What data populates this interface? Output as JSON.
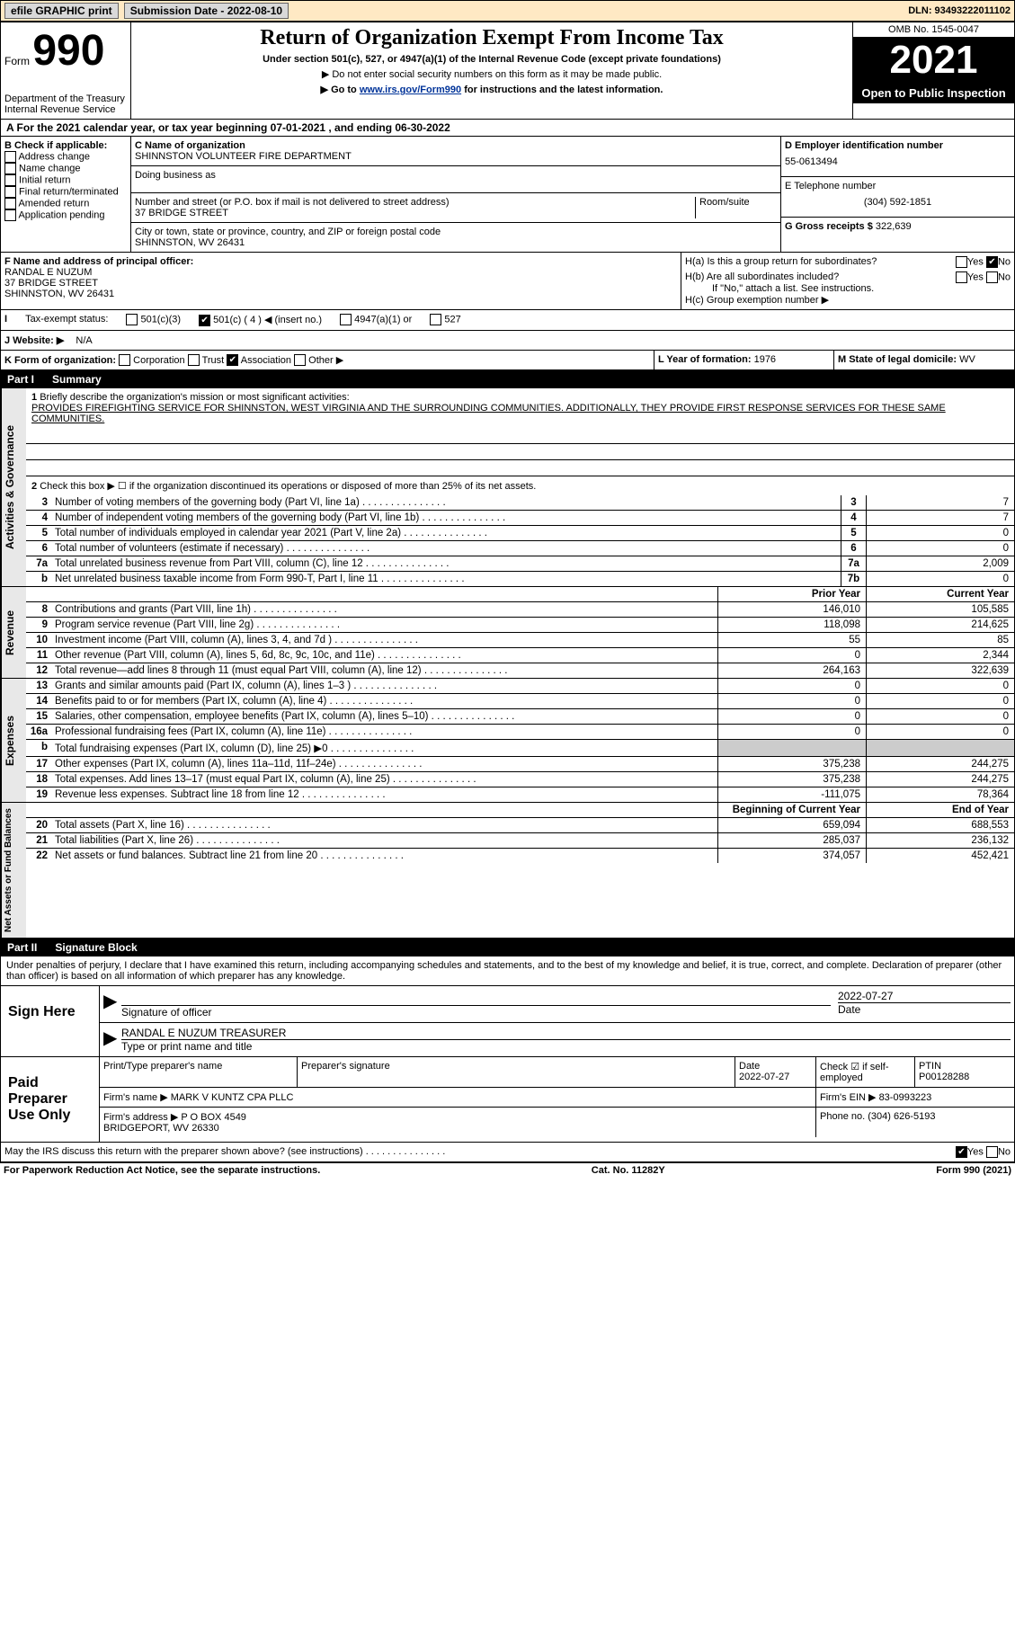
{
  "topbar": {
    "efile": "efile GRAPHIC print",
    "submission_label": "Submission Date - 2022-08-10",
    "dln_label": "DLN: 93493222011102"
  },
  "header": {
    "form_word": "Form",
    "form_num": "990",
    "dept": "Department of the Treasury Internal Revenue Service",
    "title": "Return of Organization Exempt From Income Tax",
    "sub1": "Under section 501(c), 527, or 4947(a)(1) of the Internal Revenue Code (except private foundations)",
    "sub2": "▶ Do not enter social security numbers on this form as it may be made public.",
    "sub3_pre": "▶ Go to ",
    "sub3_link": "www.irs.gov/Form990",
    "sub3_post": " for instructions and the latest information.",
    "omb": "OMB No. 1545-0047",
    "year": "2021",
    "open": "Open to Public Inspection"
  },
  "rowA": "A For the 2021 calendar year, or tax year beginning 07-01-2021    , and ending 06-30-2022",
  "B": {
    "hdr": "B Check if applicable:",
    "opts": [
      "Address change",
      "Name change",
      "Initial return",
      "Final return/terminated",
      "Amended return",
      "Application pending"
    ]
  },
  "C": {
    "name_lbl": "C Name of organization",
    "name": "SHINNSTON VOLUNTEER FIRE DEPARTMENT",
    "dba_lbl": "Doing business as",
    "addr_lbl": "Number and street (or P.O. box if mail is not delivered to street address)",
    "room_lbl": "Room/suite",
    "addr": "37 BRIDGE STREET",
    "city_lbl": "City or town, state or province, country, and ZIP or foreign postal code",
    "city": "SHINNSTON, WV  26431"
  },
  "D": {
    "ein_lbl": "D Employer identification number",
    "ein": "55-0613494",
    "tel_lbl": "E Telephone number",
    "tel": "(304) 592-1851",
    "gross_lbl": "G Gross receipts $",
    "gross": "322,639"
  },
  "F": {
    "lbl": "F Name and address of principal officer:",
    "name": "RANDAL E NUZUM",
    "addr1": "37 BRIDGE STREET",
    "addr2": "SHINNSTON, WV  26431"
  },
  "H": {
    "a": "H(a)  Is this a group return for subordinates?",
    "b": "H(b)  Are all subordinates included?",
    "b_note": "If \"No,\" attach a list. See instructions.",
    "c": "H(c)  Group exemption number ▶"
  },
  "I": {
    "lbl": "Tax-exempt status:",
    "opts": [
      "501(c)(3)",
      "501(c) ( 4 ) ◀ (insert no.)",
      "4947(a)(1) or",
      "527"
    ]
  },
  "J": {
    "lbl": "J  Website: ▶",
    "val": "N/A"
  },
  "K": {
    "lbl": "K Form of organization:",
    "opts": [
      "Corporation",
      "Trust",
      "Association",
      "Other ▶"
    ]
  },
  "L": {
    "lbl": "L Year of formation:",
    "val": "1976"
  },
  "M": {
    "lbl": "M State of legal domicile:",
    "val": "WV"
  },
  "part1": {
    "name": "Part I",
    "title": "Summary"
  },
  "p1": {
    "l1_lbl": "Briefly describe the organization's mission or most significant activities:",
    "l1_val": "PROVIDES FIREFIGHTING SERVICE FOR SHINNSTON, WEST VIRGINIA AND THE SURROUNDING COMMUNITIES. ADDITIONALLY, THEY PROVIDE FIRST RESPONSE SERVICES FOR THESE SAME COMMUNITIES.",
    "l2": "Check this box ▶ ☐ if the organization discontinued its operations or disposed of more than 25% of its net assets.",
    "rows_ag": [
      {
        "n": "3",
        "t": "Number of voting members of the governing body (Part VI, line 1a)",
        "b": "3",
        "v": "7"
      },
      {
        "n": "4",
        "t": "Number of independent voting members of the governing body (Part VI, line 1b)",
        "b": "4",
        "v": "7"
      },
      {
        "n": "5",
        "t": "Total number of individuals employed in calendar year 2021 (Part V, line 2a)",
        "b": "5",
        "v": "0"
      },
      {
        "n": "6",
        "t": "Total number of volunteers (estimate if necessary)",
        "b": "6",
        "v": "0"
      },
      {
        "n": "7a",
        "t": "Total unrelated business revenue from Part VIII, column (C), line 12",
        "b": "7a",
        "v": "2,009"
      },
      {
        "n": "b",
        "t": "Net unrelated business taxable income from Form 990-T, Part I, line 11",
        "b": "7b",
        "v": "0"
      }
    ],
    "col_prior": "Prior Year",
    "col_curr": "Current Year",
    "revenue": [
      {
        "n": "8",
        "t": "Contributions and grants (Part VIII, line 1h)",
        "p": "146,010",
        "c": "105,585"
      },
      {
        "n": "9",
        "t": "Program service revenue (Part VIII, line 2g)",
        "p": "118,098",
        "c": "214,625"
      },
      {
        "n": "10",
        "t": "Investment income (Part VIII, column (A), lines 3, 4, and 7d )",
        "p": "55",
        "c": "85"
      },
      {
        "n": "11",
        "t": "Other revenue (Part VIII, column (A), lines 5, 6d, 8c, 9c, 10c, and 11e)",
        "p": "0",
        "c": "2,344"
      },
      {
        "n": "12",
        "t": "Total revenue—add lines 8 through 11 (must equal Part VIII, column (A), line 12)",
        "p": "264,163",
        "c": "322,639"
      }
    ],
    "expenses": [
      {
        "n": "13",
        "t": "Grants and similar amounts paid (Part IX, column (A), lines 1–3 )",
        "p": "0",
        "c": "0"
      },
      {
        "n": "14",
        "t": "Benefits paid to or for members (Part IX, column (A), line 4)",
        "p": "0",
        "c": "0"
      },
      {
        "n": "15",
        "t": "Salaries, other compensation, employee benefits (Part IX, column (A), lines 5–10)",
        "p": "0",
        "c": "0"
      },
      {
        "n": "16a",
        "t": "Professional fundraising fees (Part IX, column (A), line 11e)",
        "p": "0",
        "c": "0"
      },
      {
        "n": "b",
        "t": "Total fundraising expenses (Part IX, column (D), line 25) ▶0",
        "p": "",
        "c": "",
        "shaded": true
      },
      {
        "n": "17",
        "t": "Other expenses (Part IX, column (A), lines 11a–11d, 11f–24e)",
        "p": "375,238",
        "c": "244,275"
      },
      {
        "n": "18",
        "t": "Total expenses. Add lines 13–17 (must equal Part IX, column (A), line 25)",
        "p": "375,238",
        "c": "244,275"
      },
      {
        "n": "19",
        "t": "Revenue less expenses. Subtract line 18 from line 12",
        "p": "-111,075",
        "c": "78,364"
      }
    ],
    "col_beg": "Beginning of Current Year",
    "col_end": "End of Year",
    "netassets": [
      {
        "n": "20",
        "t": "Total assets (Part X, line 16)",
        "p": "659,094",
        "c": "688,553"
      },
      {
        "n": "21",
        "t": "Total liabilities (Part X, line 26)",
        "p": "285,037",
        "c": "236,132"
      },
      {
        "n": "22",
        "t": "Net assets or fund balances. Subtract line 21 from line 20",
        "p": "374,057",
        "c": "452,421"
      }
    ]
  },
  "vert": {
    "ag": "Activities & Governance",
    "rev": "Revenue",
    "exp": "Expenses",
    "na": "Net Assets or Fund Balances"
  },
  "part2": {
    "name": "Part II",
    "title": "Signature Block"
  },
  "sig": {
    "decl": "Under penalties of perjury, I declare that I have examined this return, including accompanying schedules and statements, and to the best of my knowledge and belief, it is true, correct, and complete. Declaration of preparer (other than officer) is based on all information of which preparer has any knowledge.",
    "here": "Sign Here",
    "officer_sig": "Signature of officer",
    "officer_date": "2022-07-27",
    "officer_name": "RANDAL E NUZUM  TREASURER",
    "officer_name_lbl": "Type or print name and title",
    "paid": "Paid Preparer Use Only",
    "prep_name_lbl": "Print/Type preparer's name",
    "prep_sig_lbl": "Preparer's signature",
    "prep_date_lbl": "Date",
    "prep_date": "2022-07-27",
    "prep_check": "Check ☑ if self-employed",
    "ptin_lbl": "PTIN",
    "ptin": "P00128288",
    "firm_name_lbl": "Firm's name    ▶",
    "firm_name": "MARK V KUNTZ CPA PLLC",
    "firm_ein_lbl": "Firm's EIN ▶",
    "firm_ein": "83-0993223",
    "firm_addr_lbl": "Firm's address ▶",
    "firm_addr": "P O BOX 4549\nBRIDGEPORT, WV  26330",
    "firm_phone_lbl": "Phone no.",
    "firm_phone": "(304) 626-5193"
  },
  "discuss": "May the IRS discuss this return with the preparer shown above? (see instructions)",
  "footer": {
    "pra": "For Paperwork Reduction Act Notice, see the separate instructions.",
    "cat": "Cat. No. 11282Y",
    "form": "Form 990 (2021)"
  }
}
